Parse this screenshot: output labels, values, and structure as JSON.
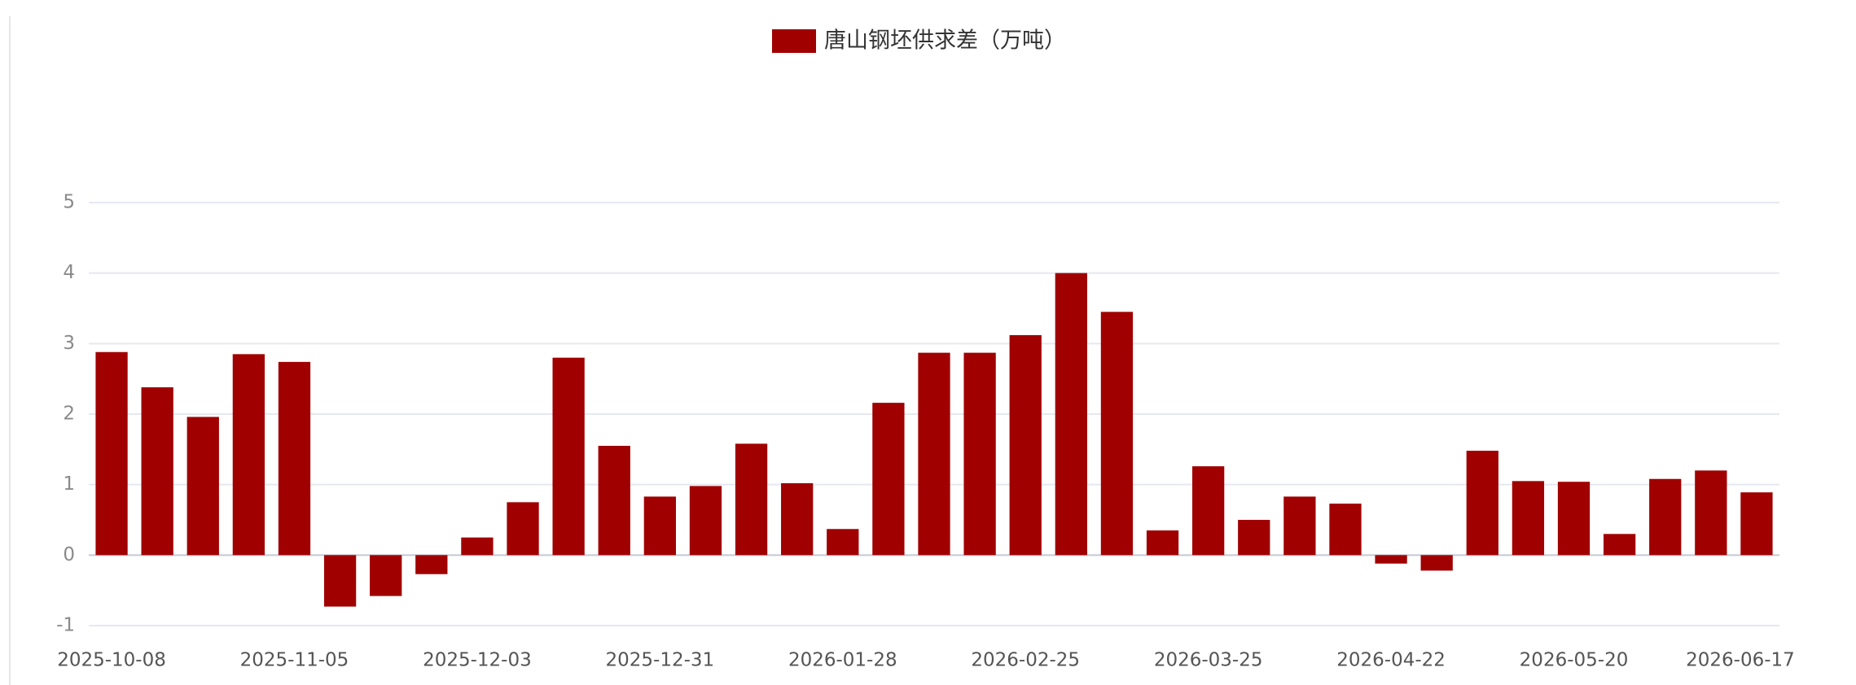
{
  "chart_data": {
    "type": "bar",
    "legend": "唐山钢坯供求差（万吨）",
    "color": "#a00000",
    "categories": [
      "2025-10-08",
      null,
      null,
      null,
      "2025-11-05",
      null,
      null,
      null,
      "2025-12-03",
      null,
      null,
      null,
      "2025-12-31",
      null,
      null,
      null,
      "2026-01-28",
      null,
      null,
      null,
      "2026-02-25",
      null,
      null,
      null,
      "2026-03-25",
      null,
      null,
      null,
      "2026-04-22",
      null,
      null,
      null,
      "2026-05-20",
      null,
      null,
      null,
      "2026-06-17"
    ],
    "values": [
      2.88,
      2.38,
      1.96,
      2.85,
      2.74,
      -0.73,
      -0.58,
      -0.27,
      0.25,
      0.75,
      2.8,
      1.55,
      0.83,
      0.98,
      1.58,
      1.02,
      0.37,
      2.16,
      2.87,
      2.87,
      3.12,
      4.0,
      3.45,
      0.35,
      1.26,
      0.5,
      0.83,
      0.73,
      -0.12,
      -0.22,
      1.48,
      1.05,
      1.04,
      0.3,
      1.08,
      1.2,
      0.89
    ],
    "ylim": [
      -1,
      5
    ],
    "yticks": [
      -1,
      0,
      1,
      2,
      3,
      4,
      5
    ],
    "grid": true
  }
}
